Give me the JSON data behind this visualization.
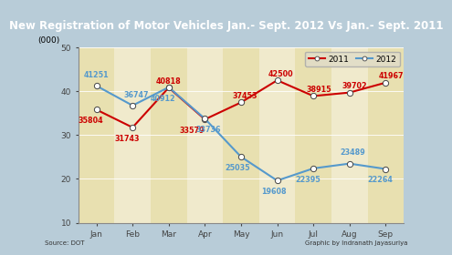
{
  "title": "New Registration of Motor Vehicles Jan.- Sept. 2012 Vs Jan.- Sept. 2011",
  "ylabel": "(000)",
  "source": "Source: DOT",
  "credit": "Graphic by Indranath Jayasuriya",
  "months": [
    "Jan",
    "Feb",
    "Mar",
    "Apr",
    "May",
    "Jun",
    "Jul",
    "Aug",
    "Sep"
  ],
  "values_2011": [
    35804,
    31743,
    40818,
    33579,
    37453,
    42500,
    38915,
    39702,
    41967
  ],
  "values_2012": [
    41251,
    36747,
    40912,
    33736,
    25035,
    19608,
    22395,
    23489,
    22264
  ],
  "color_2011": "#cc0000",
  "color_2012": "#5599cc",
  "title_bg": "#1a7ab8",
  "title_color": "#ffffff",
  "fig_bg": "#b8ccd8",
  "plot_bg": "#f0eacc",
  "stripe_light": "#e8e0b0",
  "stripe_dark": "#d8d098",
  "ylim_min": 10,
  "ylim_max": 50,
  "yticks": [
    10,
    20,
    30,
    40,
    50
  ],
  "legend_2011": "2011",
  "legend_2012": "2012",
  "title_fontsize": 8.5,
  "label_fontsize": 5.8,
  "tick_fontsize": 6.5,
  "source_fontsize": 5.0,
  "label_offsets_2011_x": [
    -0.15,
    -0.15,
    0.0,
    -0.35,
    0.1,
    0.1,
    0.15,
    0.15,
    0.15
  ],
  "label_offsets_2011_y": [
    -2.5,
    -2.5,
    1.5,
    -2.5,
    1.5,
    1.5,
    1.5,
    1.5,
    1.5
  ],
  "label_offsets_2012_x": [
    0.0,
    0.1,
    -0.15,
    0.1,
    -0.1,
    -0.1,
    -0.15,
    0.1,
    -0.15
  ],
  "label_offsets_2012_y": [
    2.5,
    2.5,
    -2.5,
    -2.5,
    -2.5,
    -2.5,
    -2.5,
    2.5,
    -2.5
  ]
}
